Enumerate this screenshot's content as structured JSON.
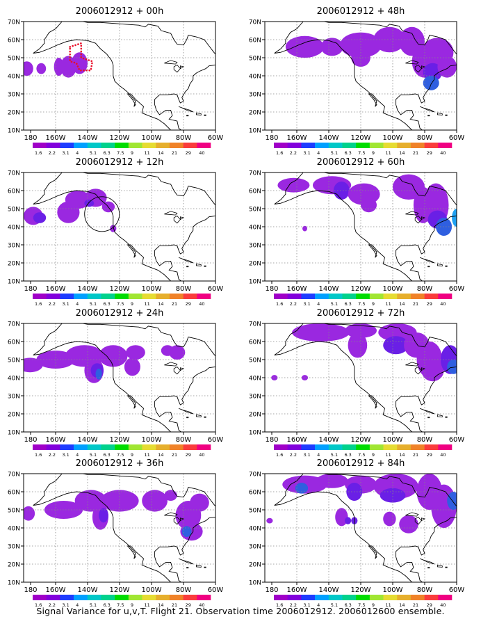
{
  "panels": [
    {
      "title": "2006012912 + 00h",
      "id": "00h"
    },
    {
      "title": "2006012912 + 48h",
      "id": "48h"
    },
    {
      "title": "2006012912 + 12h",
      "id": "12h"
    },
    {
      "title": "2006012912 + 60h",
      "id": "60h"
    },
    {
      "title": "2006012912 + 24h",
      "id": "24h"
    },
    {
      "title": "2006012912 + 72h",
      "id": "72h"
    },
    {
      "title": "2006012912 + 36h",
      "id": "36h"
    },
    {
      "title": "2006012912 + 84h",
      "id": "84h"
    }
  ],
  "lat_labels": [
    "70N",
    "60N",
    "50N",
    "40N",
    "30N",
    "20N",
    "10N"
  ],
  "lon_labels": [
    "180",
    "160W",
    "140W",
    "120W",
    "100W",
    "80W",
    "60W"
  ],
  "colorbar": {
    "labels": [
      "1.6",
      "2.2",
      "3.1",
      "4",
      "5.1",
      "6.3",
      "7.5",
      "9",
      "11",
      "14",
      "21",
      "29",
      "40"
    ],
    "colors": [
      "#a000c8",
      "#8200dc",
      "#1e3cff",
      "#00a0ff",
      "#00c8c8",
      "#00d28c",
      "#00dc00",
      "#a0e632",
      "#e6dc32",
      "#e6af2d",
      "#f08228",
      "#fa3c3c",
      "#f00082"
    ]
  },
  "shading": {
    "low": "#9a28e0",
    "mid": "#6a1fe6",
    "high": "#2f5fe0",
    "peak": "#1fa0f0"
  },
  "caption": "Signal Variance for u,v,T. Flight 21. Observation time 2006012912. 2006012600 ensemble."
}
